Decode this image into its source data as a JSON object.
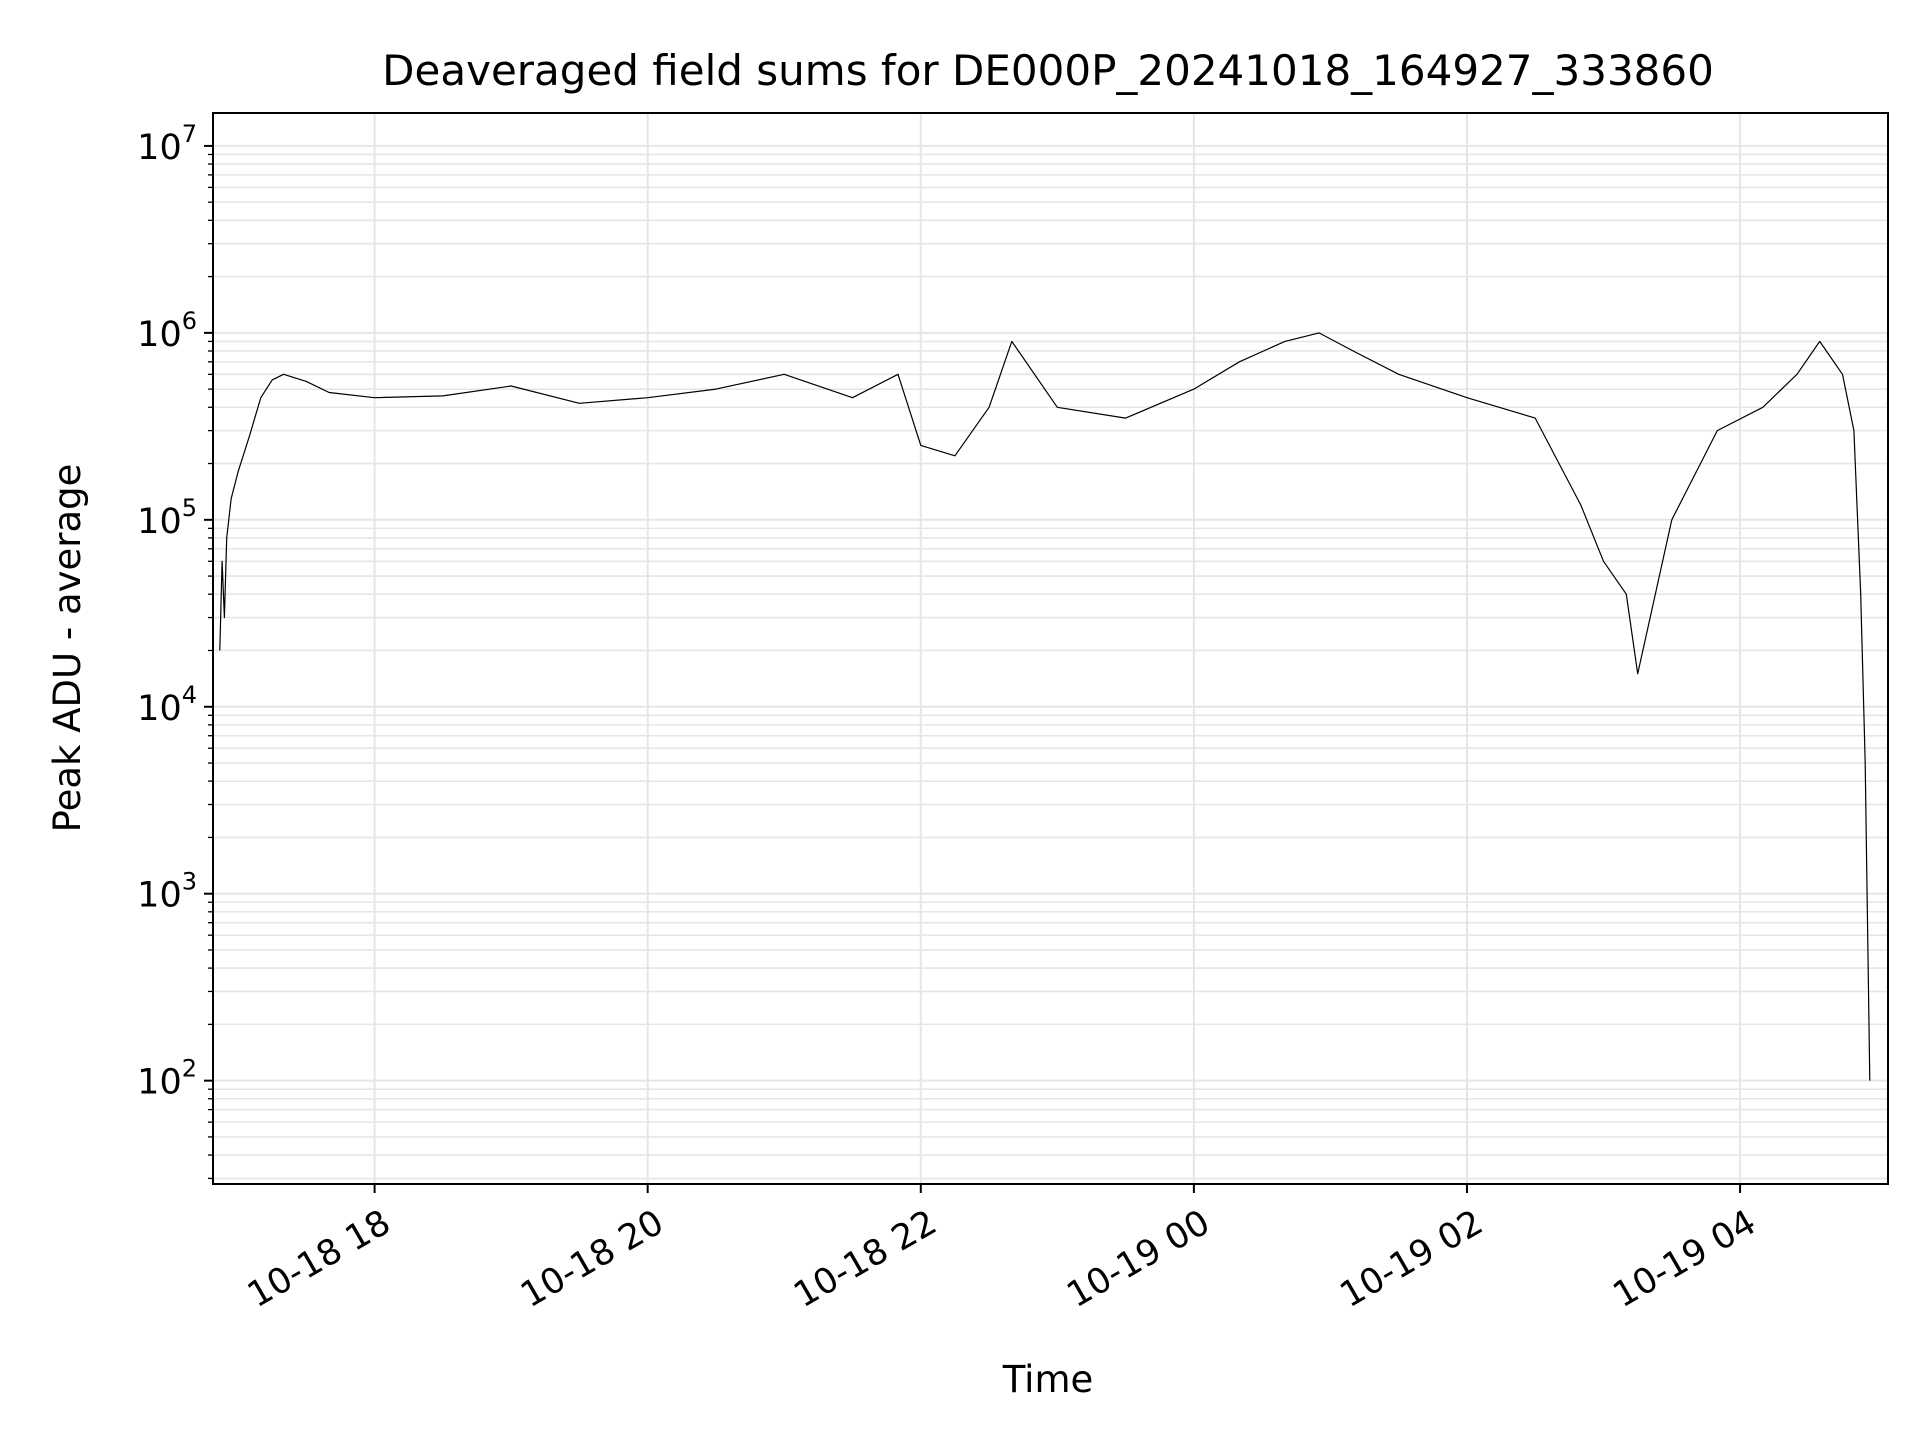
{
  "chart_data": {
    "type": "line",
    "title": "Deaveraged field sums for DE000P_20241018_164927_333860",
    "xlabel": "Time",
    "ylabel": "Peak ADU - average",
    "x_range": [
      "2024-10-18 16:49",
      "2024-10-19 05:05"
    ],
    "ylim": [
      28,
      15000000
    ],
    "y_scale": "log",
    "grid": true,
    "grid_minor": true,
    "legend": "none",
    "line_color": "#000000",
    "grid_color": "#e6e6e6",
    "x_ticks": [
      {
        "value": "2024-10-18 18:00",
        "label": "10-18 18"
      },
      {
        "value": "2024-10-18 20:00",
        "label": "10-18 20"
      },
      {
        "value": "2024-10-18 22:00",
        "label": "10-18 22"
      },
      {
        "value": "2024-10-19 00:00",
        "label": "10-19 00"
      },
      {
        "value": "2024-10-19 02:00",
        "label": "10-19 02"
      },
      {
        "value": "2024-10-19 04:00",
        "label": "10-19 04"
      }
    ],
    "y_ticks": [
      {
        "value": 100,
        "base": "10",
        "exp": "2"
      },
      {
        "value": 1000,
        "base": "10",
        "exp": "3"
      },
      {
        "value": 10000,
        "base": "10",
        "exp": "4"
      },
      {
        "value": 100000,
        "base": "10",
        "exp": "5"
      },
      {
        "value": 1000000,
        "base": "10",
        "exp": "6"
      },
      {
        "value": 10000000,
        "base": "10",
        "exp": "7"
      }
    ],
    "series": [
      {
        "x": [
          "2024-10-18 16:52",
          "2024-10-18 16:53",
          "2024-10-18 16:54",
          "2024-10-18 16:55",
          "2024-10-18 16:57",
          "2024-10-18 17:00",
          "2024-10-18 17:05",
          "2024-10-18 17:10",
          "2024-10-18 17:15",
          "2024-10-18 17:20",
          "2024-10-18 17:30",
          "2024-10-18 17:40",
          "2024-10-18 18:00",
          "2024-10-18 18:30",
          "2024-10-18 19:00",
          "2024-10-18 19:30",
          "2024-10-18 20:00",
          "2024-10-18 20:30",
          "2024-10-18 21:00",
          "2024-10-18 21:30",
          "2024-10-18 21:50",
          "2024-10-18 22:00",
          "2024-10-18 22:15",
          "2024-10-18 22:30",
          "2024-10-18 22:40",
          "2024-10-18 23:00",
          "2024-10-18 23:30",
          "2024-10-19 00:00",
          "2024-10-19 00:20",
          "2024-10-19 00:40",
          "2024-10-19 00:55",
          "2024-10-19 01:10",
          "2024-10-19 01:30",
          "2024-10-19 02:00",
          "2024-10-19 02:30",
          "2024-10-19 02:50",
          "2024-10-19 03:00",
          "2024-10-19 03:10",
          "2024-10-19 03:15",
          "2024-10-19 03:30",
          "2024-10-19 03:50",
          "2024-10-19 04:10",
          "2024-10-19 04:25",
          "2024-10-19 04:35",
          "2024-10-19 04:45",
          "2024-10-19 04:50",
          "2024-10-19 04:53",
          "2024-10-19 04:55",
          "2024-10-19 04:57"
        ],
        "values": [
          20000,
          60000,
          30000,
          80000,
          130000,
          180000,
          280000,
          450000,
          560000,
          600000,
          550000,
          480000,
          450000,
          460000,
          520000,
          420000,
          450000,
          500000,
          600000,
          450000,
          600000,
          250000,
          220000,
          400000,
          900000,
          400000,
          350000,
          500000,
          700000,
          900000,
          1000000,
          800000,
          600000,
          450000,
          350000,
          120000,
          60000,
          40000,
          15000,
          100000,
          300000,
          400000,
          600000,
          900000,
          600000,
          300000,
          40000,
          5000,
          100
        ]
      }
    ]
  }
}
